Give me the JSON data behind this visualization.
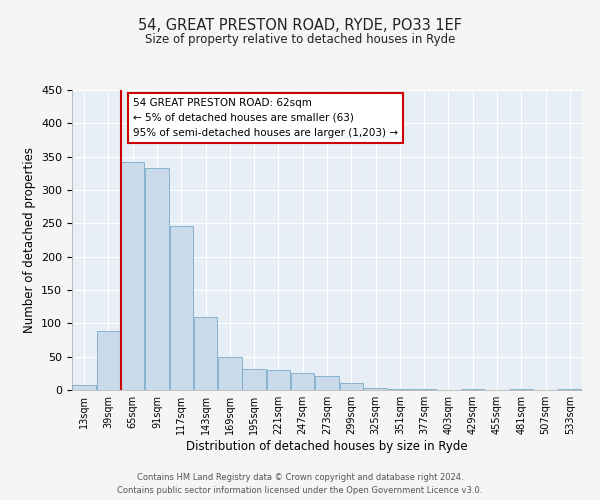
{
  "title": "54, GREAT PRESTON ROAD, RYDE, PO33 1EF",
  "subtitle": "Size of property relative to detached houses in Ryde",
  "xlabel": "Distribution of detached houses by size in Ryde",
  "ylabel": "Number of detached properties",
  "bar_color": "#c9daea",
  "bar_edge_color": "#7aaac8",
  "background_color": "#e8eef5",
  "grid_color": "#ffffff",
  "vline_x": 65,
  "vline_color": "#cc0000",
  "annotation_title": "54 GREAT PRESTON ROAD: 62sqm",
  "annotation_line1": "← 5% of detached houses are smaller (63)",
  "annotation_line2": "95% of semi-detached houses are larger (1,203) →",
  "annotation_box_facecolor": "#ffffff",
  "annotation_box_edgecolor": "#cc0000",
  "bin_edges": [
    13,
    39,
    65,
    91,
    117,
    143,
    169,
    195,
    221,
    247,
    273,
    299,
    325,
    351,
    377,
    403,
    429,
    455,
    481,
    507,
    533,
    559
  ],
  "bin_labels": [
    "13sqm",
    "39sqm",
    "65sqm",
    "91sqm",
    "117sqm",
    "143sqm",
    "169sqm",
    "195sqm",
    "221sqm",
    "247sqm",
    "273sqm",
    "299sqm",
    "325sqm",
    "351sqm",
    "377sqm",
    "403sqm",
    "429sqm",
    "455sqm",
    "481sqm",
    "507sqm",
    "533sqm"
  ],
  "bar_heights": [
    7,
    88,
    342,
    333,
    246,
    110,
    49,
    32,
    30,
    25,
    21,
    10,
    3,
    1,
    1,
    0,
    1,
    0,
    1,
    0,
    1
  ],
  "ylim": [
    0,
    450
  ],
  "yticks": [
    0,
    50,
    100,
    150,
    200,
    250,
    300,
    350,
    400,
    450
  ],
  "fig_facecolor": "#f5f5f5",
  "footer_line1": "Contains HM Land Registry data © Crown copyright and database right 2024.",
  "footer_line2": "Contains public sector information licensed under the Open Government Licence v3.0."
}
